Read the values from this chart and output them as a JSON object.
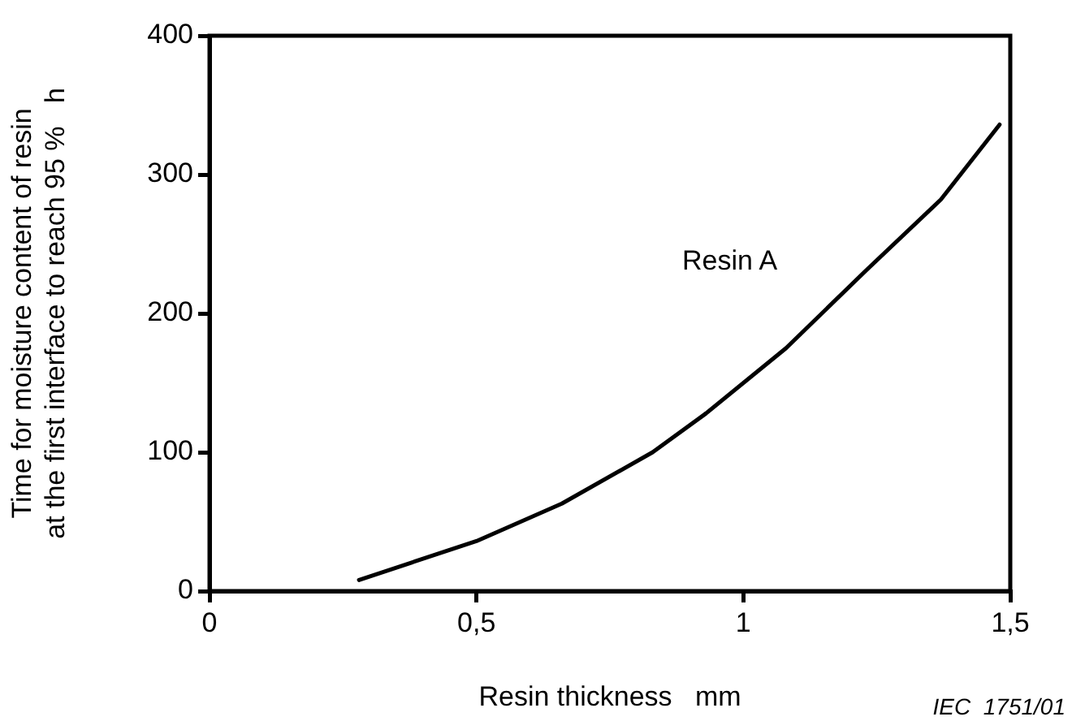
{
  "chart_data": {
    "type": "line",
    "xlabel": "Resin thickness   mm",
    "ylabel": "Time for moisture content of resin\nat the first interface to reach 95 %   h",
    "x": [
      0.28,
      0.5,
      0.66,
      0.83,
      0.93,
      1.08,
      1.23,
      1.37,
      1.48
    ],
    "series": [
      {
        "name": "Resin A",
        "color": "#000000",
        "values": [
          8,
          36,
          63,
          100,
          128,
          175,
          231,
          282,
          336
        ]
      }
    ],
    "xlim": [
      0,
      1.5
    ],
    "xticks": [
      0,
      {
        "value": 0.5,
        "label": "0,5"
      },
      1,
      {
        "value": 1.5,
        "label": "1,5"
      }
    ],
    "ylim": [
      0,
      400
    ],
    "yticks": [
      0,
      100,
      200,
      300,
      400
    ],
    "grid": false,
    "legend": false,
    "marker": "none",
    "line_style": "solid",
    "annotations": [
      "IEC  1751/01"
    ]
  }
}
